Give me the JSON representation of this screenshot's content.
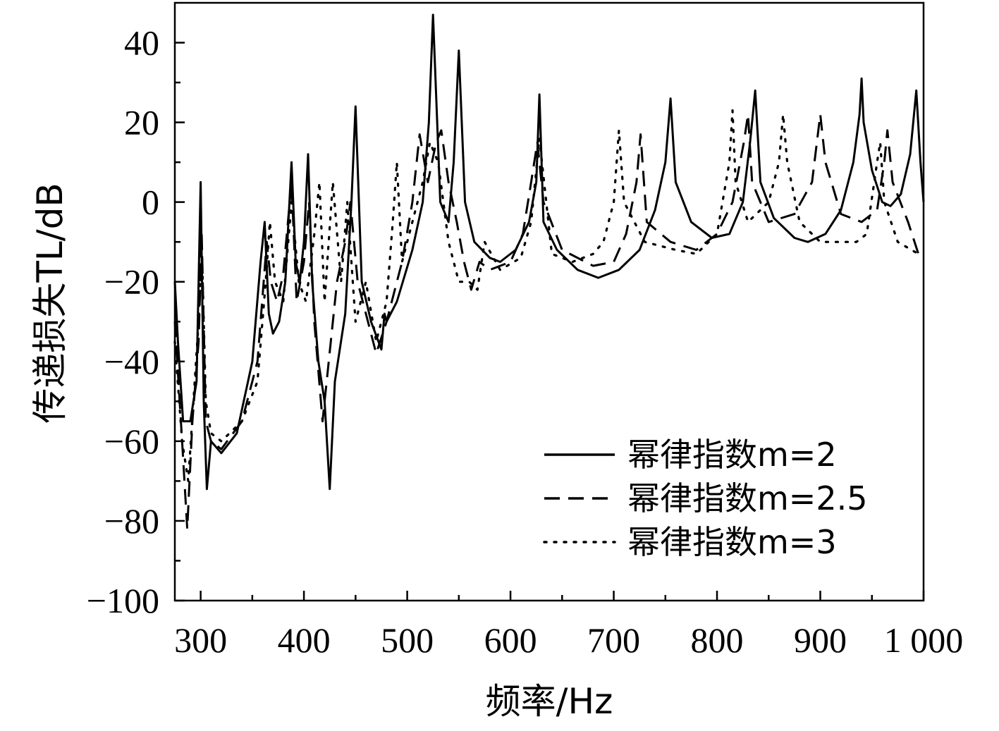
{
  "chart_data": {
    "type": "line",
    "title": "",
    "xlabel": "频率/Hz",
    "ylabel": "传递损失TL/dB",
    "xlim": [
      275,
      1000
    ],
    "ylim": [
      -100,
      50
    ],
    "grid": false,
    "legend_position": "bottom-right",
    "x_ticks": [
      300,
      400,
      500,
      600,
      700,
      800,
      900,
      1000
    ],
    "x_tick_labels": [
      "300",
      "400",
      "500",
      "600",
      "700",
      "800",
      "900",
      "1 000"
    ],
    "y_ticks": [
      -100,
      -80,
      -60,
      -40,
      -20,
      0,
      20,
      40
    ],
    "y_tick_labels": [
      "−100",
      "−80",
      "−60",
      "−40",
      "−20",
      "0",
      "20",
      "40"
    ],
    "series": [
      {
        "name": "幂律指数m=2",
        "style": "solid",
        "color": "#000000",
        "x": [
          275,
          278,
          283,
          290,
          296,
          300,
          303,
          306,
          310,
          320,
          335,
          350,
          358,
          362,
          366,
          370,
          376,
          382,
          388,
          392,
          396,
          400,
          404,
          408,
          414,
          420,
          425,
          430,
          440,
          446,
          450,
          456,
          465,
          475,
          478,
          480,
          490,
          505,
          515,
          521,
          525,
          532,
          540,
          545,
          550,
          556,
          565,
          580,
          590,
          605,
          618,
          625,
          628,
          632,
          645,
          665,
          685,
          705,
          725,
          740,
          750,
          755,
          760,
          775,
          795,
          812,
          825,
          832,
          837,
          842,
          855,
          875,
          888,
          905,
          920,
          932,
          938,
          940,
          942,
          950,
          960,
          968,
          978,
          987,
          993,
          997,
          1000
        ],
        "y": [
          -20,
          -35,
          -55,
          -55,
          -45,
          5,
          -50,
          -72,
          -60,
          -63,
          -58,
          -40,
          -15,
          -5,
          -28,
          -33,
          -30,
          -20,
          10,
          -15,
          -20,
          -10,
          12,
          -20,
          -40,
          -50,
          -72,
          -45,
          -28,
          0,
          24,
          -20,
          -30,
          -37,
          -28,
          -30,
          -25,
          -12,
          0,
          20,
          47,
          0,
          -5,
          10,
          38,
          0,
          -10,
          -14,
          -15,
          -12,
          -5,
          5,
          27,
          -5,
          -12,
          -17,
          -19,
          -17,
          -12,
          -2,
          10,
          26,
          5,
          -5,
          -9,
          -8,
          0,
          15,
          28,
          5,
          -4,
          -9,
          -10,
          -8,
          -2,
          10,
          22,
          31,
          20,
          8,
          0,
          -1,
          2,
          12,
          28,
          10,
          0
        ]
      },
      {
        "name": "幂律指数m=2.5",
        "style": "dashed",
        "color": "#000000",
        "x": [
          275,
          282,
          287,
          292,
          298,
          301,
          305,
          310,
          320,
          340,
          355,
          364,
          368,
          374,
          380,
          388,
          393,
          400,
          405,
          410,
          418,
          424,
          432,
          440,
          445,
          452,
          462,
          470,
          480,
          495,
          505,
          512,
          520,
          528,
          533,
          540,
          548,
          555,
          562,
          570,
          580,
          600,
          612,
          620,
          626,
          632,
          650,
          680,
          700,
          712,
          722,
          726,
          732,
          755,
          780,
          800,
          815,
          826,
          830,
          834,
          850,
          875,
          892,
          900,
          905,
          920,
          940,
          955,
          962,
          965,
          970,
          985,
          995
        ],
        "y": [
          -30,
          -60,
          -82,
          -55,
          -35,
          -8,
          -55,
          -60,
          -62,
          -55,
          -40,
          -10,
          -20,
          -25,
          -18,
          5,
          -25,
          -15,
          0,
          -30,
          -55,
          -40,
          -20,
          -10,
          0,
          -20,
          -30,
          -38,
          -30,
          -15,
          0,
          17,
          5,
          15,
          18,
          5,
          -5,
          -15,
          -22,
          -15,
          -17,
          -15,
          -8,
          5,
          15,
          0,
          -12,
          -16,
          -15,
          -8,
          5,
          17,
          -5,
          -10,
          -12,
          -8,
          0,
          15,
          22,
          5,
          -5,
          -3,
          5,
          22,
          10,
          -3,
          -5,
          -2,
          10,
          18,
          5,
          -5,
          -13
        ]
      },
      {
        "name": "幂律指数m=3",
        "style": "dotted",
        "color": "#000000",
        "x": [
          275,
          282,
          288,
          293,
          298,
          301,
          305,
          310,
          320,
          340,
          355,
          363,
          367,
          372,
          380,
          388,
          395,
          402,
          410,
          415,
          420,
          428,
          436,
          442,
          450,
          460,
          470,
          480,
          486,
          490,
          495,
          505,
          515,
          522,
          530,
          540,
          550,
          560,
          568,
          575,
          590,
          610,
          620,
          628,
          640,
          660,
          680,
          690,
          700,
          705,
          710,
          730,
          760,
          780,
          800,
          812,
          815,
          818,
          830,
          850,
          860,
          864,
          868,
          880,
          900,
          920,
          935,
          945,
          955,
          958,
          962,
          975,
          995
        ],
        "y": [
          -35,
          -60,
          -70,
          -50,
          -30,
          -10,
          -50,
          -58,
          -60,
          -55,
          -45,
          -20,
          -5,
          -20,
          -25,
          0,
          -20,
          -25,
          -8,
          5,
          -25,
          5,
          -20,
          0,
          -30,
          -20,
          -35,
          -25,
          -5,
          10,
          -15,
          -5,
          5,
          15,
          10,
          -10,
          -20,
          -20,
          -22,
          -10,
          -17,
          -14,
          -5,
          16,
          -13,
          -15,
          -13,
          -10,
          0,
          18,
          0,
          -10,
          -12,
          -13,
          -8,
          10,
          23,
          5,
          -5,
          0,
          10,
          22,
          10,
          -5,
          -10,
          -10,
          -10,
          -8,
          10,
          15,
          0,
          -10,
          -13
        ]
      }
    ]
  }
}
